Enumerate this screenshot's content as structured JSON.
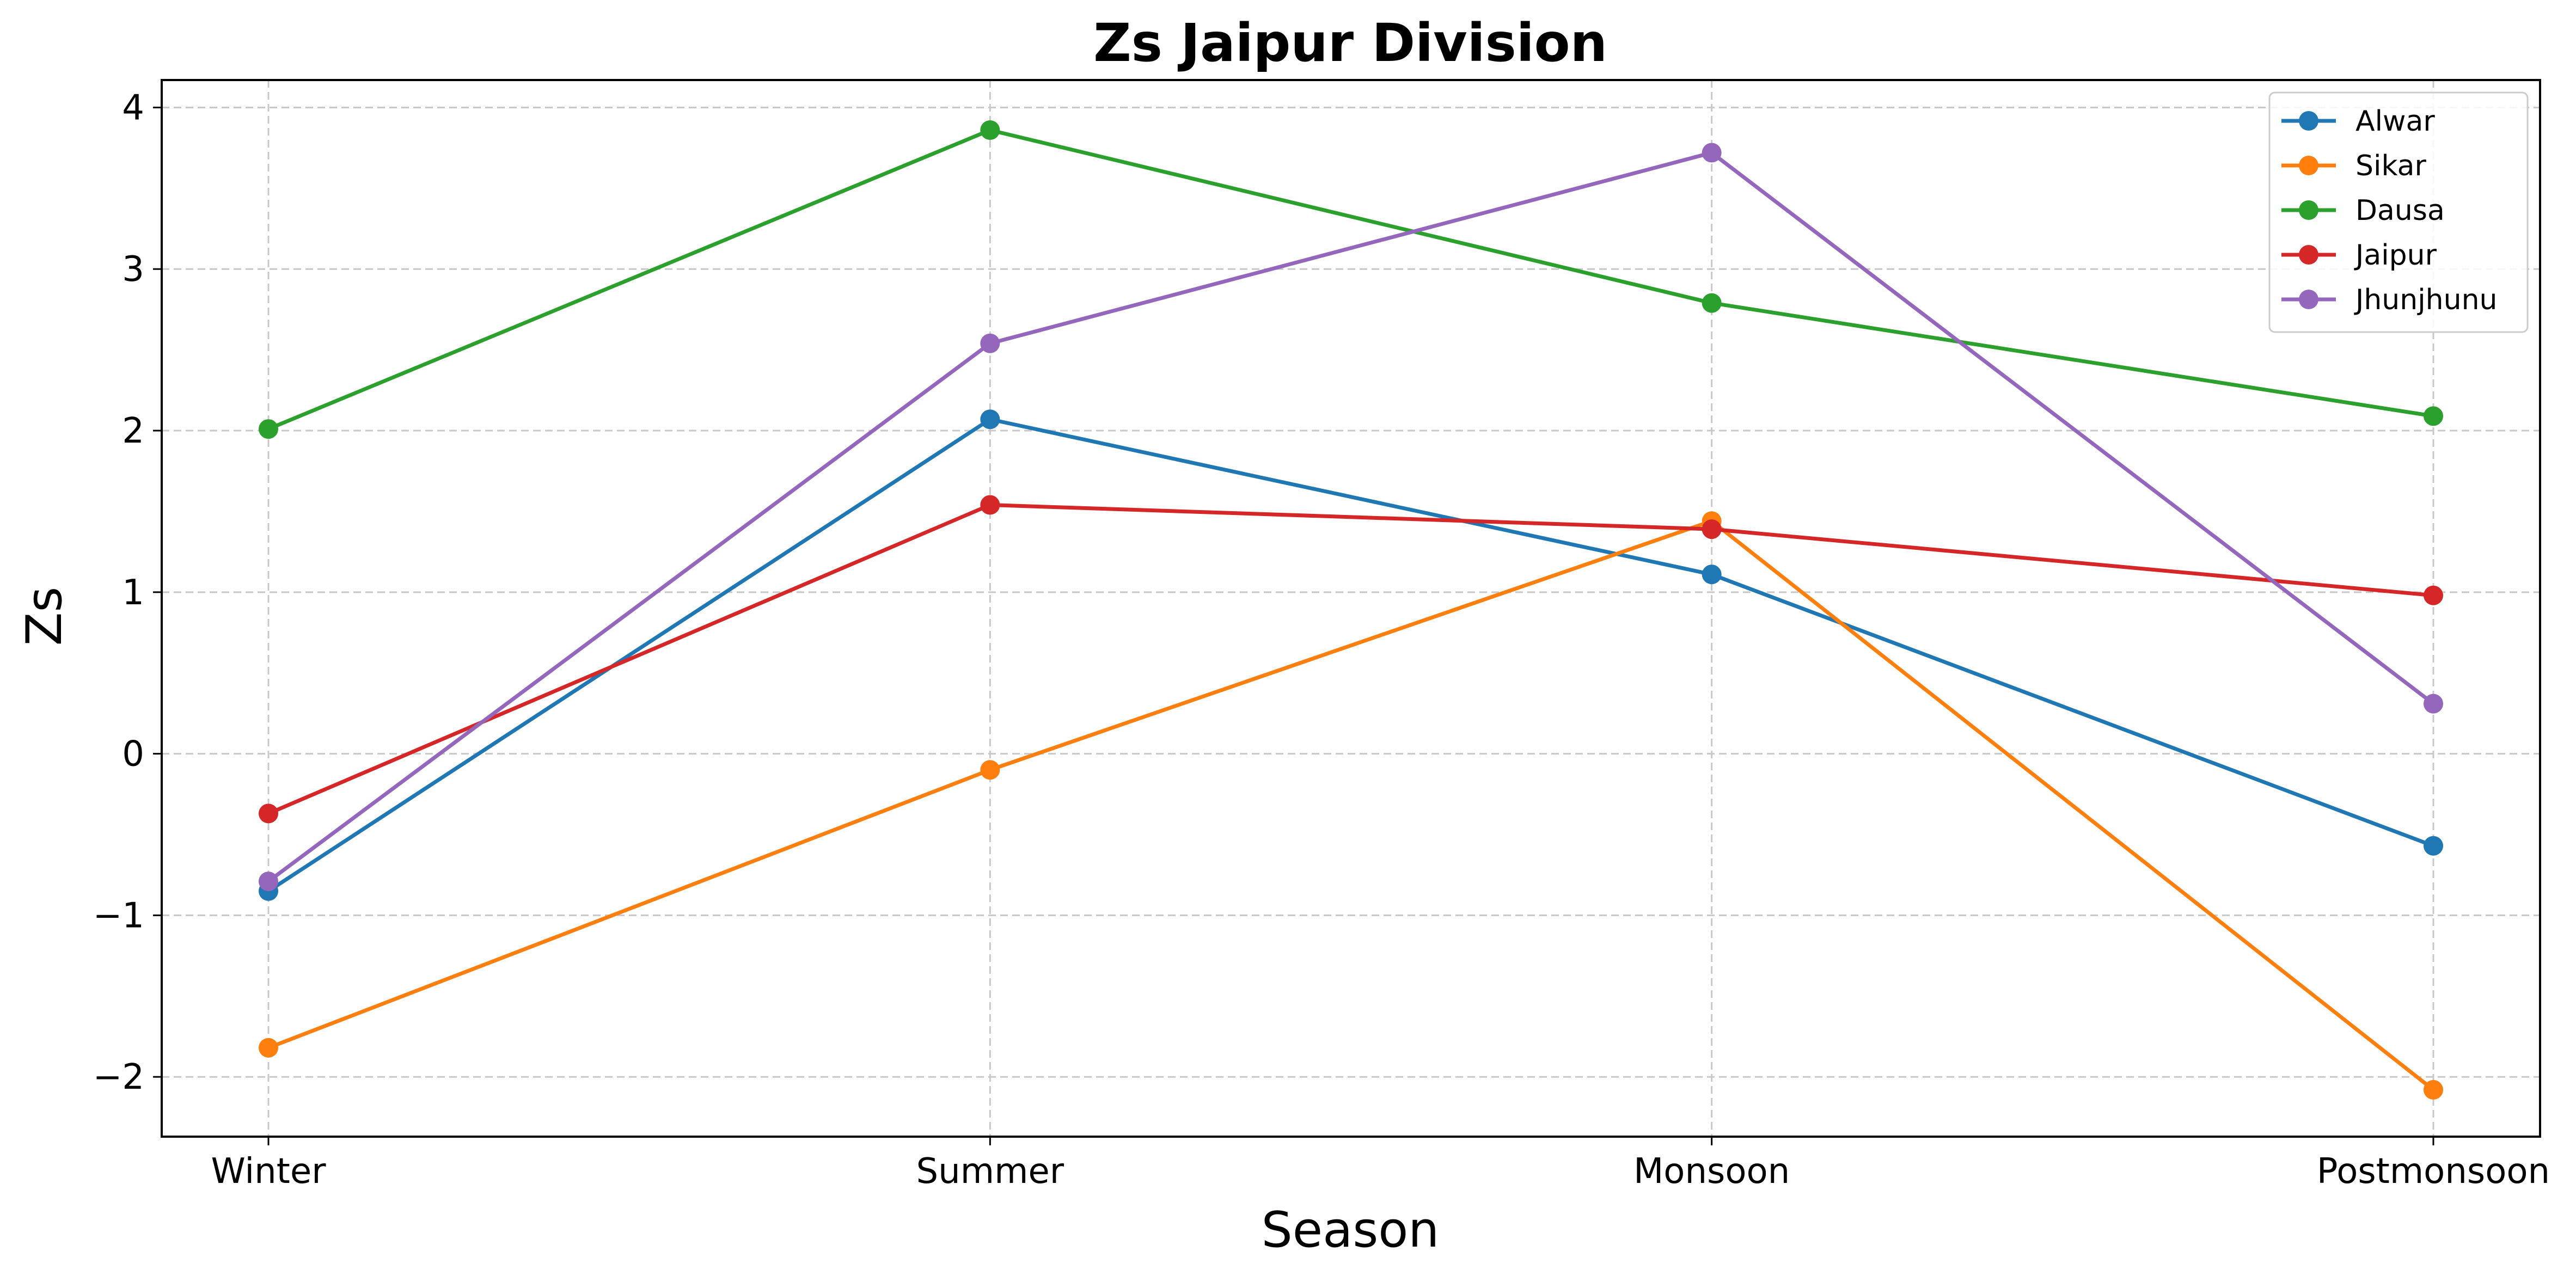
{
  "chart_data": {
    "type": "line",
    "title": "Zs  Jaipur Division",
    "xlabel": "Season",
    "ylabel": "Zs",
    "categories": [
      "Winter",
      "Summer",
      "Monsoon",
      "Postmonsoon"
    ],
    "ylim": [
      -2.37,
      4.17
    ],
    "yticks": [
      -2,
      -1,
      0,
      1,
      2,
      3,
      4
    ],
    "ytick_labels": [
      "−2",
      "−1",
      "0",
      "1",
      "2",
      "3",
      "4"
    ],
    "grid": true,
    "legend_position": "top-right",
    "series": [
      {
        "name": "Alwar",
        "color": "#1f77b4",
        "values": [
          -0.85,
          2.07,
          1.11,
          -0.57
        ]
      },
      {
        "name": "Sikar",
        "color": "#ff7f0e",
        "values": [
          -1.82,
          -0.1,
          1.44,
          -2.08
        ]
      },
      {
        "name": "Dausa",
        "color": "#2ca02c",
        "values": [
          2.01,
          3.86,
          2.79,
          2.09
        ]
      },
      {
        "name": "Jaipur",
        "color": "#d62728",
        "values": [
          -0.37,
          1.54,
          1.39,
          0.98
        ]
      },
      {
        "name": "Jhunjhunu",
        "color": "#9467bd",
        "values": [
          -0.79,
          2.54,
          3.72,
          0.31
        ]
      }
    ]
  }
}
